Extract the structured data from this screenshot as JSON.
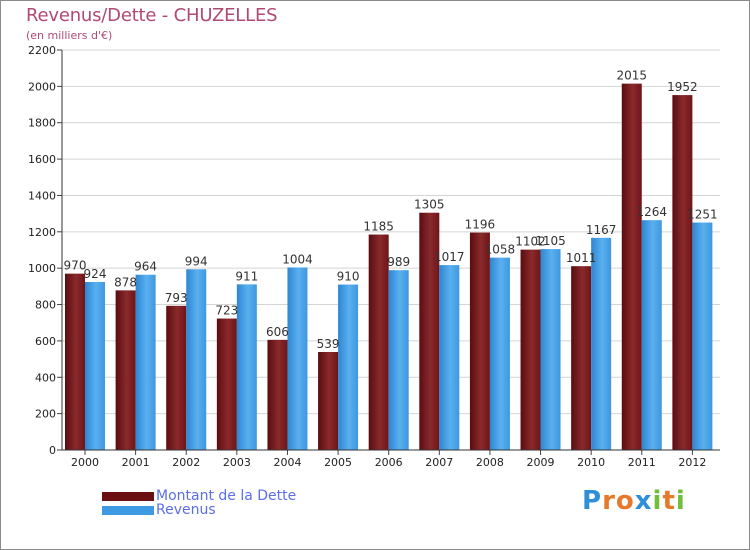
{
  "header": {
    "title": "Revenus/Dette - CHUZELLES",
    "subtitle": "(en milliers d'€)"
  },
  "chart_data": {
    "type": "bar",
    "categories": [
      "2000",
      "2001",
      "2002",
      "2003",
      "2004",
      "2005",
      "2006",
      "2007",
      "2008",
      "2009",
      "2010",
      "2011",
      "2012"
    ],
    "series": [
      {
        "name": "Montant de la Dette",
        "values": [
          970,
          878,
          793,
          723,
          606,
          539,
          1185,
          1305,
          1196,
          1102,
          1011,
          2015,
          1952
        ],
        "labels": [
          "970",
          "878",
          "793",
          "723",
          "606",
          "539",
          "1185",
          "1305",
          "1196",
          "1102",
          "1011",
          "2015",
          "1952"
        ],
        "color": "#7a1a1e"
      },
      {
        "name": "Revenus",
        "values": [
          924,
          964,
          994,
          911,
          1004,
          910,
          989,
          1017,
          1058,
          1105,
          1167,
          1264,
          1251
        ],
        "labels": [
          "924",
          "964",
          "994",
          "911",
          "1004",
          "910",
          "989",
          "1017",
          "1058",
          "1105",
          "1167",
          "1264",
          "1251"
        ],
        "color": "#4aa3e6"
      }
    ],
    "ylim": [
      0,
      2200
    ],
    "yticks": [
      0,
      200,
      400,
      600,
      800,
      1000,
      1200,
      1400,
      1600,
      1800,
      2000,
      2200
    ],
    "grid": true,
    "legend": "bottom-left"
  },
  "legend": {
    "items": [
      {
        "label": "Montant de la Dette",
        "color": "#6b0f12"
      },
      {
        "label": "Revenus",
        "color": "#3d9ae3"
      }
    ]
  },
  "logo": {
    "letters": [
      {
        "ch": "P",
        "color": "#2f8fd8"
      },
      {
        "ch": "r",
        "color": "#e7792b"
      },
      {
        "ch": "o",
        "color": "#e7792b"
      },
      {
        "ch": "x",
        "color": "#2f8fd8"
      },
      {
        "ch": "i",
        "color": "#6fbf3a"
      },
      {
        "ch": "t",
        "color": "#e7792b"
      },
      {
        "ch": "i",
        "color": "#6fbf3a"
      }
    ]
  }
}
